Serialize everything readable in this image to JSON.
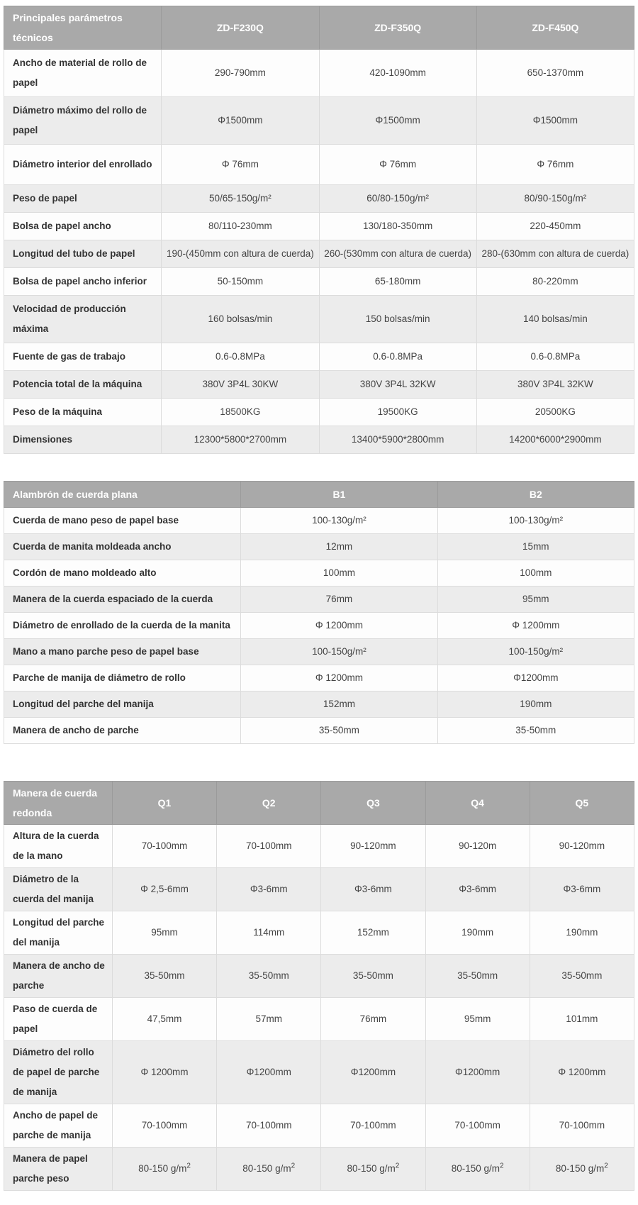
{
  "colors": {
    "header_bg": "#a9a9a9",
    "header_text": "#ffffff",
    "row_bg": "#fdfdfd",
    "row_alt_bg": "#ececec",
    "border": "#dcdcdc",
    "label_text": "#333333",
    "value_text": "#444444"
  },
  "tables": [
    {
      "title": "Principales parámetros técnicos",
      "columns": [
        "ZD-F230Q",
        "ZD-F350Q",
        "ZD-F450Q"
      ],
      "rows": [
        {
          "label": "Ancho de material de rollo de papel",
          "values": [
            "290-790mm",
            "420-1090mm",
            "650-1370mm"
          ]
        },
        {
          "label": "Diámetro máximo del rollo de papel",
          "values": [
            "Φ1500mm",
            "Φ1500mm",
            "Φ1500mm"
          ]
        },
        {
          "label": "Diámetro interior del enrollado",
          "values": [
            "Φ 76mm",
            "Φ 76mm",
            "Φ 76mm"
          ]
        },
        {
          "label": "Peso de papel",
          "values": [
            "50/65-150g/m²",
            "60/80-150g/m²",
            "80/90-150g/m²"
          ]
        },
        {
          "label": "Bolsa de papel ancho",
          "values": [
            "80/110-230mm",
            "130/180-350mm",
            "220-450mm"
          ]
        },
        {
          "label": "Longitud del tubo de papel",
          "values": [
            "190-(450mm con altura de cuerda)",
            "260-(530mm con altura de cuerda)",
            "280-(630mm con altura de cuerda)"
          ]
        },
        {
          "label": "Bolsa de papel ancho inferior",
          "values": [
            "50-150mm",
            "65-180mm",
            "80-220mm"
          ]
        },
        {
          "label": "Velocidad de producción máxima",
          "values": [
            "160 bolsas/min",
            "150 bolsas/min",
            "140 bolsas/min"
          ]
        },
        {
          "label": "Fuente de gas de trabajo",
          "values": [
            "0.6-0.8MPa",
            "0.6-0.8MPa",
            "0.6-0.8MPa"
          ]
        },
        {
          "label": "Potencia total de la máquina",
          "values": [
            "380V 3P4L 30KW",
            "380V 3P4L 32KW",
            "380V 3P4L 32KW"
          ]
        },
        {
          "label": "Peso de la máquina",
          "values": [
            "18500KG",
            "19500KG",
            "20500KG"
          ]
        },
        {
          "label": "Dimensiones",
          "values": [
            "12300*5800*2700mm",
            "13400*5900*2800mm",
            "14200*6000*2900mm"
          ]
        }
      ]
    },
    {
      "title": "Alambrón de cuerda plana",
      "columns": [
        "B1",
        "B2"
      ],
      "rows": [
        {
          "label": "Cuerda de mano peso de papel base",
          "values": [
            "100-130g/m²",
            "100-130g/m²"
          ]
        },
        {
          "label": "Cuerda de manita moldeada ancho",
          "values": [
            "12mm",
            "15mm"
          ]
        },
        {
          "label": "Cordón de mano moldeado alto",
          "values": [
            "100mm",
            "100mm"
          ]
        },
        {
          "label": "Manera de la cuerda espaciado de la cuerda",
          "values": [
            "76mm",
            "95mm"
          ]
        },
        {
          "label": "Diámetro de enrollado de la cuerda de la manita",
          "values": [
            "Φ 1200mm",
            "Φ 1200mm"
          ]
        },
        {
          "label": "Mano a mano parche peso de papel base",
          "values": [
            "100-150g/m²",
            "100-150g/m²"
          ]
        },
        {
          "label": "Parche de manija de diámetro de rollo",
          "values": [
            "Φ 1200mm",
            "Φ1200mm"
          ]
        },
        {
          "label": "Longitud del parche del manija",
          "values": [
            "152mm",
            "190mm"
          ]
        },
        {
          "label": "Manera de ancho de parche",
          "values": [
            "35-50mm",
            "35-50mm"
          ]
        }
      ]
    },
    {
      "title": "Manera de cuerda redonda",
      "columns": [
        "Q1",
        "Q2",
        "Q3",
        "Q4",
        "Q5"
      ],
      "rows": [
        {
          "label": "Altura de la cuerda de la mano",
          "values": [
            "70-100mm",
            "70-100mm",
            "90-120mm",
            "90-120m",
            "90-120mm"
          ]
        },
        {
          "label": "Diámetro de la cuerda del manija",
          "values": [
            "Φ 2,5-6mm",
            "Φ3-6mm",
            "Φ3-6mm",
            "Φ3-6mm",
            "Φ3-6mm"
          ]
        },
        {
          "label": "Longitud del parche del manija",
          "values": [
            "95mm",
            "114mm",
            "152mm",
            "190mm",
            "190mm"
          ]
        },
        {
          "label": "Manera de ancho de parche",
          "values": [
            "35-50mm",
            "35-50mm",
            "35-50mm",
            "35-50mm",
            "35-50mm"
          ]
        },
        {
          "label": "Paso de cuerda de papel",
          "values": [
            "47,5mm",
            "57mm",
            "76mm",
            "95mm",
            "101mm"
          ]
        },
        {
          "label": "Diámetro del rollo de papel de parche de manija",
          "values": [
            "Φ 1200mm",
            "Φ1200mm",
            "Φ1200mm",
            "Φ1200mm",
            "Φ 1200mm"
          ]
        },
        {
          "label": "Ancho de papel de parche de manija",
          "values": [
            "70-100mm",
            "70-100mm",
            "70-100mm",
            "70-100mm",
            "70-100mm"
          ]
        },
        {
          "label": "Manera de papel parche peso",
          "values": [
            "80-150 g/m^2",
            "80-150 g/m^2",
            "80-150 g/m^2",
            "80-150 g/m^2",
            "80-150 g/m^2"
          ]
        }
      ]
    }
  ]
}
